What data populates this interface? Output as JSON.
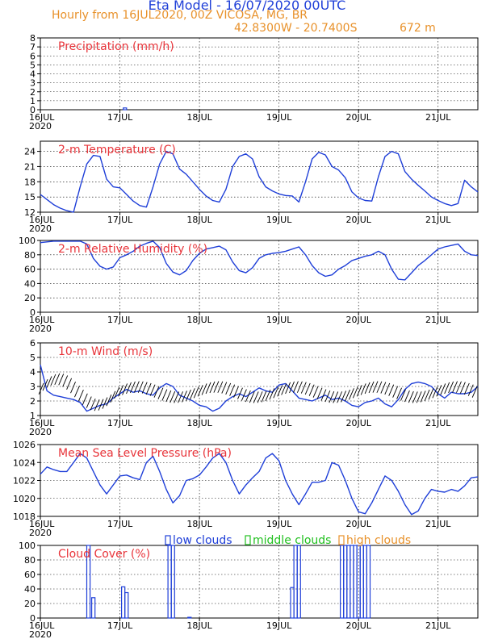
{
  "header": {
    "title": "Eta Model - 16/07/2020 00UTC",
    "subtitle": "Hourly from 16JUL2020, 00Z  VICOSA, MG, BR",
    "coords": "42.8300W - 20.7400S",
    "elevation": "672  m"
  },
  "colors": {
    "series": "#1f3fd8",
    "title": "#e8343a",
    "middle": "#22c020",
    "high": "#e8912a",
    "axis": "#000000"
  },
  "x_axis": {
    "range_hours": [
      0,
      132
    ],
    "ticks": [
      {
        "hour": 0,
        "label": "16JUL",
        "sub": "2020"
      },
      {
        "hour": 24,
        "label": "17JUL",
        "sub": ""
      },
      {
        "hour": 48,
        "label": "18JUL",
        "sub": ""
      },
      {
        "hour": 72,
        "label": "19JUL",
        "sub": ""
      },
      {
        "hour": 96,
        "label": "20JUL",
        "sub": ""
      },
      {
        "hour": 120,
        "label": "21JUL",
        "sub": ""
      }
    ]
  },
  "chart_data": [
    {
      "type": "bar",
      "title": "Precipitation (mm/h)",
      "ylim": [
        0,
        8
      ],
      "yticks": [
        "0",
        "1",
        "2",
        "3",
        "4",
        "5",
        "6",
        "7",
        "8"
      ],
      "grid": true,
      "x": [
        25.5
      ],
      "values": [
        0.2
      ]
    },
    {
      "type": "line",
      "title": "2-m Temperature (C)",
      "ylim": [
        12,
        26
      ],
      "yticks": [
        "12",
        "15",
        "18",
        "21",
        "24"
      ],
      "grid": true,
      "x": [
        0,
        2,
        4,
        6,
        8,
        10,
        12,
        14,
        16,
        18,
        20,
        22,
        24,
        26,
        28,
        30,
        32,
        34,
        36,
        38,
        40,
        42,
        44,
        46,
        48,
        50,
        52,
        54,
        56,
        58,
        60,
        62,
        64,
        66,
        68,
        70,
        72,
        74,
        76,
        78,
        80,
        82,
        84,
        86,
        88,
        90,
        92,
        94,
        96,
        98,
        100,
        102,
        104,
        106,
        108,
        110,
        112,
        114,
        116,
        118,
        120,
        122,
        124,
        126,
        128,
        130,
        132
      ],
      "values": [
        15.5,
        14.5,
        13.5,
        12.8,
        12.3,
        12.0,
        17.0,
        21.5,
        23.2,
        23.0,
        18.5,
        17.0,
        16.8,
        15.5,
        14.2,
        13.3,
        13.0,
        17.0,
        21.5,
        24.0,
        23.5,
        20.5,
        19.5,
        18.0,
        16.5,
        15.2,
        14.3,
        14.0,
        16.5,
        21.0,
        23.0,
        23.5,
        22.5,
        19.0,
        17.0,
        16.2,
        15.6,
        15.3,
        15.2,
        14.0,
        18.0,
        22.5,
        23.8,
        23.3,
        21.0,
        20.3,
        18.8,
        16.0,
        14.8,
        14.3,
        14.2,
        19.0,
        23.0,
        24.0,
        23.5,
        20.0,
        18.5,
        17.3,
        16.2,
        15.0,
        14.3,
        13.7,
        13.3,
        13.7,
        18.3,
        17.0,
        16.0
      ]
    },
    {
      "type": "line",
      "title": "2-m Relative Humidity (%)",
      "ylim": [
        0,
        100
      ],
      "yticks": [
        "0",
        "20",
        "40",
        "60",
        "80",
        "100"
      ],
      "grid": true,
      "x": [
        0,
        2,
        4,
        6,
        8,
        10,
        12,
        14,
        16,
        18,
        20,
        22,
        24,
        26,
        28,
        30,
        32,
        34,
        36,
        38,
        40,
        42,
        44,
        46,
        48,
        50,
        52,
        54,
        56,
        58,
        60,
        62,
        64,
        66,
        68,
        70,
        72,
        74,
        76,
        78,
        80,
        82,
        84,
        86,
        88,
        90,
        92,
        94,
        96,
        98,
        100,
        102,
        104,
        106,
        108,
        110,
        112,
        114,
        116,
        118,
        120,
        122,
        124,
        126,
        128,
        130,
        132
      ],
      "values": [
        97,
        98,
        99,
        99,
        99,
        99,
        99,
        95,
        75,
        64,
        60,
        63,
        76,
        80,
        85,
        92,
        96,
        99,
        90,
        68,
        56,
        52,
        58,
        72,
        82,
        88,
        90,
        92,
        87,
        70,
        58,
        55,
        62,
        75,
        80,
        82,
        83,
        85,
        88,
        91,
        80,
        65,
        55,
        50,
        52,
        60,
        65,
        72,
        75,
        78,
        80,
        85,
        80,
        60,
        46,
        45,
        55,
        65,
        72,
        80,
        88,
        91,
        93,
        95,
        85,
        80,
        79
      ]
    },
    {
      "type": "line",
      "title": "10-m Wind (m/s)",
      "ylim": [
        1,
        6
      ],
      "yticks": [
        "1",
        "2",
        "3",
        "4",
        "5",
        "6"
      ],
      "grid": true,
      "x": [
        0,
        2,
        4,
        6,
        8,
        10,
        12,
        14,
        16,
        18,
        20,
        22,
        24,
        26,
        28,
        30,
        32,
        34,
        36,
        38,
        40,
        42,
        44,
        46,
        48,
        50,
        52,
        54,
        56,
        58,
        60,
        62,
        64,
        66,
        68,
        70,
        72,
        74,
        76,
        78,
        80,
        82,
        84,
        86,
        88,
        90,
        92,
        94,
        96,
        98,
        100,
        102,
        104,
        106,
        108,
        110,
        112,
        114,
        116,
        118,
        120,
        122,
        124,
        126,
        128,
        130,
        132
      ],
      "values": [
        4.5,
        2.7,
        2.4,
        2.3,
        2.2,
        2.1,
        1.9,
        1.3,
        1.5,
        1.7,
        1.8,
        2.2,
        2.5,
        2.8,
        2.6,
        2.7,
        2.5,
        2.4,
        2.9,
        3.2,
        3.0,
        2.4,
        2.2,
        2.0,
        1.7,
        1.6,
        1.3,
        1.5,
        2.0,
        2.3,
        2.5,
        2.3,
        2.6,
        2.9,
        2.7,
        2.6,
        3.1,
        3.2,
        2.7,
        2.2,
        2.1,
        2.0,
        2.2,
        2.4,
        2.1,
        2.2,
        2.0,
        1.7,
        1.6,
        1.9,
        2.0,
        2.2,
        1.8,
        1.6,
        2.1,
        2.8,
        3.2,
        3.3,
        3.2,
        3.0,
        2.5,
        2.2,
        2.6,
        2.5,
        2.5,
        2.6,
        3.0
      ]
    },
    {
      "type": "line",
      "title": "Mean Sea Level Pressure (hPa)",
      "ylim": [
        1018,
        1026
      ],
      "yticks": [
        "1018",
        "1020",
        "1022",
        "1024",
        "1026"
      ],
      "grid": true,
      "x": [
        0,
        2,
        4,
        6,
        8,
        10,
        12,
        14,
        16,
        18,
        20,
        22,
        24,
        26,
        28,
        30,
        32,
        34,
        36,
        38,
        40,
        42,
        44,
        46,
        48,
        50,
        52,
        54,
        56,
        58,
        60,
        62,
        64,
        66,
        68,
        70,
        72,
        74,
        76,
        78,
        80,
        82,
        84,
        86,
        88,
        90,
        92,
        94,
        96,
        98,
        100,
        102,
        104,
        106,
        108,
        110,
        112,
        114,
        116,
        118,
        120,
        122,
        124,
        126,
        128,
        130,
        132
      ],
      "values": [
        1022.7,
        1023.5,
        1023.2,
        1023.0,
        1023.0,
        1024.0,
        1025.0,
        1024.5,
        1023.0,
        1021.5,
        1020.5,
        1021.5,
        1022.5,
        1022.6,
        1022.3,
        1022.1,
        1024.0,
        1024.7,
        1023.0,
        1021.0,
        1019.5,
        1020.3,
        1022.0,
        1022.2,
        1022.6,
        1023.5,
        1024.5,
        1025.0,
        1024.0,
        1022.0,
        1020.5,
        1021.5,
        1022.3,
        1023.0,
        1024.5,
        1025.0,
        1024.2,
        1022.0,
        1020.5,
        1019.3,
        1020.5,
        1021.8,
        1021.8,
        1022.0,
        1024.0,
        1023.7,
        1022.0,
        1020.0,
        1018.5,
        1018.3,
        1019.5,
        1021.0,
        1022.5,
        1022.0,
        1020.8,
        1019.3,
        1018.2,
        1018.6,
        1020.0,
        1021.0,
        1020.8,
        1020.7,
        1021.0,
        1020.8,
        1021.4,
        1022.3,
        1022.4
      ]
    },
    {
      "type": "bar",
      "title": "Cloud Cover (%)",
      "ylim": [
        0,
        100
      ],
      "yticks": [
        "0",
        "20",
        "40",
        "60",
        "80",
        "100"
      ],
      "grid": true,
      "legend": [
        "low clouds",
        "middle clouds",
        "high clouds"
      ],
      "series": [
        {
          "name": "low clouds",
          "x": [
            14.5,
            16,
            25,
            26,
            39,
            40,
            45,
            76,
            77,
            78,
            91,
            92,
            93,
            94,
            95,
            96,
            97,
            98,
            99
          ],
          "values": [
            100,
            28,
            43,
            35,
            100,
            100,
            1,
            42,
            100,
            100,
            100,
            100,
            100,
            100,
            100,
            100,
            100,
            100,
            100
          ]
        },
        {
          "name": "middle clouds",
          "x": [],
          "values": []
        },
        {
          "name": "high clouds",
          "x": [],
          "values": []
        }
      ]
    }
  ]
}
